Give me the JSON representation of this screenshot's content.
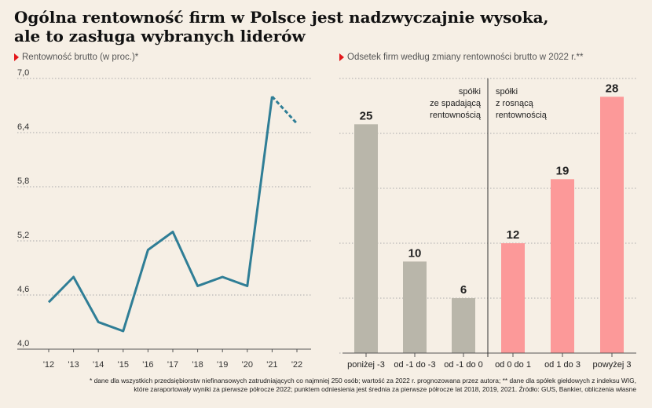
{
  "title_line1": "Ogólna rentowność firm w Polsce jest nadzwyczajnie wysoka,",
  "title_line2": "ale to zasługa wybranych liderów",
  "footnote_line1": "* dane dla wszystkich przedsiębiorstw niefinansowych zatrudniających co najmniej 250 osób; wartość za 2022 r. prognozowana przez autora; ** dane dla spółek giełdowych z indeksu WIG,",
  "footnote_line2": "które zaraportowały wyniki za pierwsze półrocze 2022; punktem odniesienia jest średnia za pierwsze półrocze lat 2018, 2019, 2021. Źródło: GUS, Bankier, obliczenia własne",
  "colors": {
    "line": "#2f7e96",
    "gray_bar": "#b9b6aa",
    "pink_bar": "#fc9999",
    "accent": "#e3171a",
    "grid": "#aaaaaa"
  },
  "chart_data": [
    {
      "type": "line",
      "subtitle": "Rentowność brutto (w proc.)*",
      "x": [
        "'12",
        "'13",
        "'14",
        "'15",
        "'16",
        "'17",
        "'18",
        "'19",
        "'20",
        "'21",
        "'22"
      ],
      "values": [
        4.52,
        4.8,
        4.3,
        4.2,
        5.1,
        5.3,
        4.7,
        4.8,
        4.7,
        6.8,
        6.5
      ],
      "forecast_segment": [
        "'21",
        "'22"
      ],
      "ylim": [
        4.0,
        7.0
      ],
      "yticks": [
        "4,0",
        "4,6",
        "5,2",
        "5,8",
        "6,4",
        "7,0"
      ],
      "grid": true
    },
    {
      "type": "bar",
      "subtitle": "Odsetek firm według zmiany rentowności brutto w 2022 r.**",
      "categories": [
        "poniżej -3",
        "od -1 do -3",
        "od -1 do 0",
        "od 0 do 1",
        "od 1 do 3",
        "powyżej 3"
      ],
      "values": [
        25,
        10,
        6,
        12,
        19,
        28
      ],
      "groups": [
        {
          "label": [
            "spółki",
            "ze spadającą",
            "rentownością"
          ],
          "categories": [
            0,
            1,
            2
          ]
        },
        {
          "label": [
            "spółki",
            "z rosnącą",
            "rentownością"
          ],
          "categories": [
            3,
            4,
            5
          ]
        }
      ],
      "ylim": [
        0,
        30
      ],
      "grid": true
    }
  ]
}
